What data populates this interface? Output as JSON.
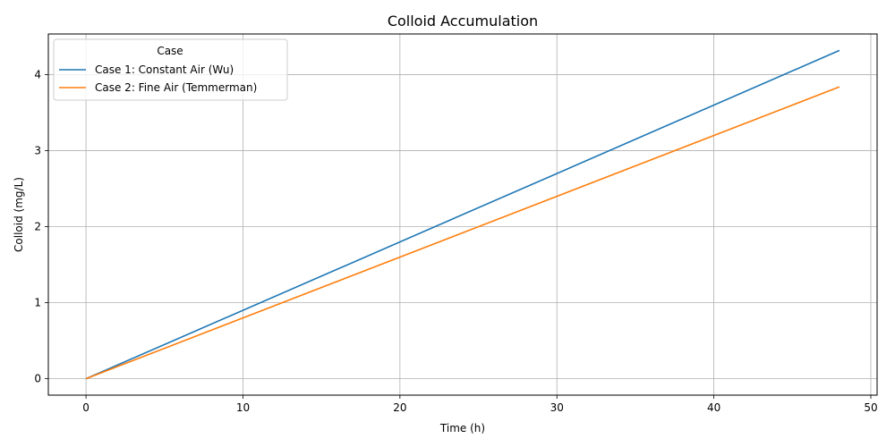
{
  "chart_data": {
    "type": "line",
    "title": "Colloid Accumulation",
    "xlabel": "Time (h)",
    "ylabel": "Colloid (mg/L)",
    "xlim": [
      -2.4,
      50.4
    ],
    "ylim": [
      -0.216,
      4.536
    ],
    "xticks": [
      0,
      10,
      20,
      30,
      40,
      50
    ],
    "yticks": [
      0,
      1,
      2,
      3,
      4
    ],
    "grid": true,
    "legend": {
      "title": "Case",
      "placement": "top-left"
    },
    "series": [
      {
        "name": "Case 1: Constant Air (Wu)",
        "color": "#1f77b4",
        "x": [
          0,
          48
        ],
        "y": [
          0,
          4.32
        ]
      },
      {
        "name": "Case 2: Fine Air (Temmerman)",
        "color": "#ff7f0e",
        "x": [
          0,
          48
        ],
        "y": [
          0,
          3.84
        ]
      }
    ]
  }
}
